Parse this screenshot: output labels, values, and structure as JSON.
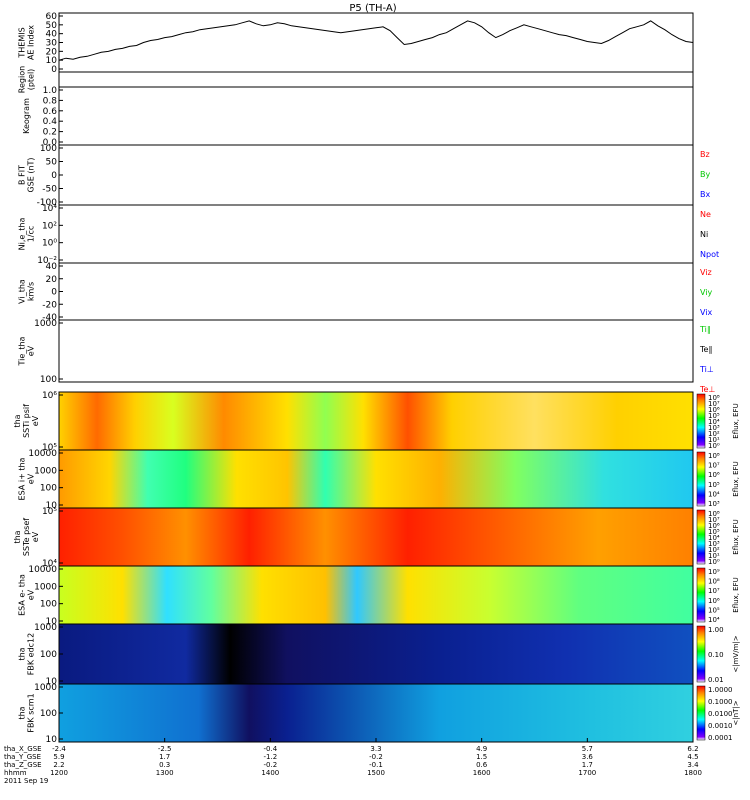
{
  "chart_data": {
    "type": "line",
    "title": "P5 (TH-A)",
    "panels": [
      {
        "id": "ae",
        "ylabel": [
          "THEMIS",
          "AE Index"
        ],
        "yticks": [
          "60",
          "50",
          "40",
          "30",
          "20",
          "10",
          "0"
        ],
        "series": [
          {
            "color": "#000000",
            "values": [
              12,
              14,
              13,
              15,
              16,
              18,
              20,
              21,
              23,
              24,
              26,
              27,
              30,
              32,
              33,
              35,
              36,
              38,
              40,
              41,
              43,
              44,
              45,
              46,
              47,
              48,
              50,
              52,
              49,
              47,
              48,
              50,
              49,
              47,
              46,
              45,
              44,
              43,
              42,
              41,
              40,
              41,
              42,
              43,
              44,
              45,
              46,
              42,
              35,
              28,
              29,
              31,
              33,
              35,
              38,
              40,
              44,
              48,
              52,
              50,
              46,
              40,
              35,
              38,
              42,
              45,
              48,
              46,
              44,
              42,
              40,
              38,
              37,
              35,
              33,
              31,
              30,
              29,
              32,
              36,
              40,
              44,
              46,
              48,
              52,
              47,
              43,
              38,
              34,
              31,
              30
            ]
          }
        ]
      },
      {
        "id": "region",
        "ylabel": [
          "Region",
          "(ptel)"
        ],
        "yticks": []
      },
      {
        "id": "keogram",
        "ylabel": [
          "Keogram"
        ],
        "yticks": [
          "1.0",
          "0.8",
          "0.6",
          "0.4",
          "0.2",
          "0.0"
        ]
      },
      {
        "id": "bfgm",
        "ylabel": [
          "B FIT",
          "GSE (nT)"
        ],
        "yticks": [
          "100",
          "50",
          "0",
          "-50",
          "-100"
        ],
        "legend": [
          "Bz",
          "By",
          "Bx"
        ]
      },
      {
        "id": "density",
        "ylabel": [
          "Ni,e_tha",
          "1/cc"
        ],
        "yticks": [
          "10⁴",
          "10²",
          "10⁰",
          "10⁻²"
        ],
        "legend": [
          "Ne",
          "Ni",
          "Npot"
        ]
      },
      {
        "id": "velocity",
        "ylabel": [
          "Vi_tha",
          "km/s"
        ],
        "yticks": [
          "40",
          "20",
          "0",
          "-20",
          "-40"
        ],
        "legend": [
          "Viz",
          "Viy",
          "Vix"
        ]
      },
      {
        "id": "temperature",
        "ylabel": [
          "Tie_tha",
          "eV"
        ],
        "yticks": [
          "1000",
          "100"
        ],
        "legend": [
          "Ti∥",
          "Te∥",
          "Ti⊥",
          "Te⊥"
        ]
      },
      {
        "id": "sst_ion",
        "ylabel": [
          "tha",
          "SSTi psif",
          "eV"
        ],
        "yticks": [
          "10⁶",
          "10⁵"
        ],
        "cbar": [
          "10⁸",
          "10⁷",
          "10⁶",
          "10⁵",
          "10⁴",
          "10³",
          "10²",
          "10¹",
          "10⁰"
        ],
        "cbar_label": "Eflux, EFU"
      },
      {
        "id": "esa_ion",
        "ylabel": [
          "ESA i+ tha",
          "eV"
        ],
        "yticks": [
          "10000",
          "1000",
          "100",
          "10"
        ],
        "cbar": [
          "10⁸",
          "10⁷",
          "10⁶",
          "10⁵",
          "10⁴",
          "10³"
        ],
        "cbar_label": "Eflux, EFU"
      },
      {
        "id": "sst_elec",
        "ylabel": [
          "tha",
          "SSTe psef",
          "eV"
        ],
        "yticks": [
          "10⁵",
          "10⁴"
        ],
        "cbar": [
          "10⁸",
          "10⁷",
          "10⁶",
          "10⁵",
          "10⁴",
          "10³",
          "10²",
          "10¹",
          "10⁰"
        ],
        "cbar_label": "Eflux, EFU"
      },
      {
        "id": "esa_elec",
        "ylabel": [
          "ESA e- tha",
          "eV"
        ],
        "yticks": [
          "10000",
          "1000",
          "100",
          "10"
        ],
        "cbar": [
          "10⁹",
          "10⁸",
          "10⁷",
          "10⁶",
          "10⁵",
          "10⁴"
        ],
        "cbar_label": "Eflux, EFU"
      },
      {
        "id": "fbk_edc",
        "ylabel": [
          "tha",
          "FBK edc12"
        ],
        "yticks": [
          "1000",
          "100",
          "10"
        ],
        "cbar": [
          "1.00",
          "0.10",
          "0.01"
        ],
        "cbar_label": "<|mV/m|>"
      },
      {
        "id": "fbk_scm",
        "ylabel": [
          "tha",
          "FBK scm1"
        ],
        "yticks": [
          "1000",
          "100",
          "10"
        ],
        "cbar": [
          "1.0000",
          "0.1000",
          "0.0100",
          "0.0010",
          "0.0001"
        ],
        "cbar_label": "<|nT|>"
      }
    ],
    "xaxis": {
      "row_labels": [
        "tha_X_GSE",
        "tha_Y_GSE",
        "tha_Z_GSE",
        "hhmm",
        "2011 Sep 19"
      ],
      "columns": [
        [
          "-2.4",
          "5.9",
          "2.2",
          "1200"
        ],
        [
          "-2.5",
          "1.7",
          "0.3",
          "1300"
        ],
        [
          "-0.4",
          "-1.2",
          "-0.2",
          "1400"
        ],
        [
          "3.3",
          "-0.2",
          "-0.1",
          "1500"
        ],
        [
          "4.9",
          "1.5",
          "0.6",
          "1600"
        ],
        [
          "5.7",
          "3.6",
          "1.7",
          "1700"
        ],
        [
          "6.2",
          "4.5",
          "3.4",
          "1800"
        ]
      ]
    }
  }
}
